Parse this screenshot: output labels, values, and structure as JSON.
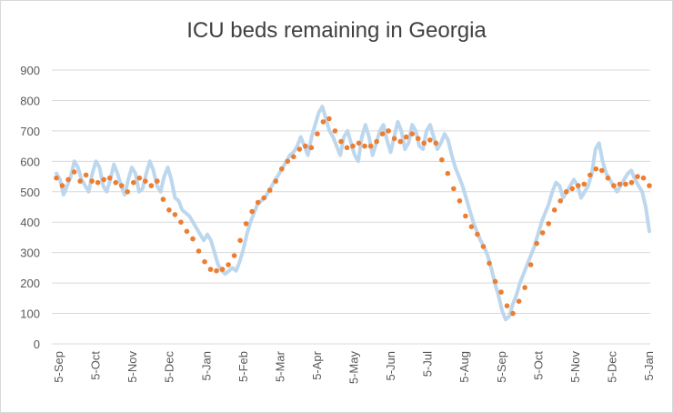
{
  "chart_data": {
    "type": "line",
    "title": "ICU beds remaining in Georgia",
    "xlabel": "",
    "ylabel": "",
    "ylim": [
      0,
      900
    ],
    "yticks": [
      0,
      100,
      200,
      300,
      400,
      500,
      600,
      700,
      800,
      900
    ],
    "x_tick_labels": [
      "5-Sep",
      "5-Oct",
      "5-Nov",
      "5-Dec",
      "5-Jan",
      "5-Feb",
      "5-Mar",
      "5-Apr",
      "5-May",
      "5-Jun",
      "5-Jul",
      "5-Aug",
      "5-Sep",
      "5-Oct",
      "5-Nov",
      "5-Dec",
      "5-Jan"
    ],
    "grid": true,
    "legend": "none",
    "colors": {
      "daily_line": "#bdd7ee",
      "weekly_markers": "#ed7d31",
      "gridline": "#d9d9d9",
      "title_text": "#404040",
      "tick_text": "#595959"
    },
    "series": [
      {
        "style": "line",
        "points": [
          [
            0,
            560
          ],
          [
            1,
            540
          ],
          [
            2,
            490
          ],
          [
            3,
            520
          ],
          [
            4,
            550
          ],
          [
            5,
            600
          ],
          [
            6,
            580
          ],
          [
            7,
            540
          ],
          [
            8,
            520
          ],
          [
            9,
            500
          ],
          [
            10,
            560
          ],
          [
            11,
            600
          ],
          [
            12,
            580
          ],
          [
            13,
            520
          ],
          [
            14,
            500
          ],
          [
            15,
            540
          ],
          [
            16,
            590
          ],
          [
            17,
            560
          ],
          [
            18,
            520
          ],
          [
            19,
            490
          ],
          [
            20,
            540
          ],
          [
            21,
            580
          ],
          [
            22,
            560
          ],
          [
            23,
            500
          ],
          [
            24,
            510
          ],
          [
            25,
            560
          ],
          [
            26,
            600
          ],
          [
            27,
            570
          ],
          [
            28,
            520
          ],
          [
            29,
            500
          ],
          [
            30,
            550
          ],
          [
            31,
            580
          ],
          [
            32,
            540
          ],
          [
            33,
            480
          ],
          [
            34,
            470
          ],
          [
            35,
            440
          ],
          [
            36,
            430
          ],
          [
            37,
            420
          ],
          [
            38,
            400
          ],
          [
            39,
            380
          ],
          [
            40,
            360
          ],
          [
            41,
            340
          ],
          [
            42,
            360
          ],
          [
            43,
            340
          ],
          [
            44,
            300
          ],
          [
            45,
            260
          ],
          [
            46,
            240
          ],
          [
            47,
            230
          ],
          [
            48,
            240
          ],
          [
            49,
            250
          ],
          [
            50,
            240
          ],
          [
            51,
            270
          ],
          [
            52,
            310
          ],
          [
            53,
            360
          ],
          [
            54,
            400
          ],
          [
            55,
            430
          ],
          [
            56,
            460
          ],
          [
            57,
            470
          ],
          [
            58,
            480
          ],
          [
            59,
            500
          ],
          [
            60,
            520
          ],
          [
            61,
            540
          ],
          [
            62,
            560
          ],
          [
            63,
            580
          ],
          [
            64,
            600
          ],
          [
            65,
            620
          ],
          [
            66,
            630
          ],
          [
            67,
            650
          ],
          [
            68,
            680
          ],
          [
            69,
            650
          ],
          [
            70,
            620
          ],
          [
            71,
            680
          ],
          [
            72,
            720
          ],
          [
            73,
            760
          ],
          [
            74,
            780
          ],
          [
            75,
            740
          ],
          [
            76,
            700
          ],
          [
            77,
            680
          ],
          [
            78,
            650
          ],
          [
            79,
            620
          ],
          [
            80,
            680
          ],
          [
            81,
            700
          ],
          [
            82,
            660
          ],
          [
            83,
            620
          ],
          [
            84,
            600
          ],
          [
            85,
            680
          ],
          [
            86,
            720
          ],
          [
            87,
            680
          ],
          [
            88,
            620
          ],
          [
            89,
            660
          ],
          [
            90,
            700
          ],
          [
            91,
            720
          ],
          [
            92,
            670
          ],
          [
            93,
            630
          ],
          [
            94,
            680
          ],
          [
            95,
            730
          ],
          [
            96,
            700
          ],
          [
            97,
            640
          ],
          [
            98,
            660
          ],
          [
            99,
            720
          ],
          [
            100,
            700
          ],
          [
            101,
            650
          ],
          [
            102,
            640
          ],
          [
            103,
            700
          ],
          [
            104,
            720
          ],
          [
            105,
            680
          ],
          [
            106,
            640
          ],
          [
            107,
            660
          ],
          [
            108,
            690
          ],
          [
            109,
            670
          ],
          [
            110,
            620
          ],
          [
            111,
            580
          ],
          [
            112,
            550
          ],
          [
            113,
            520
          ],
          [
            114,
            480
          ],
          [
            115,
            440
          ],
          [
            116,
            400
          ],
          [
            117,
            370
          ],
          [
            118,
            340
          ],
          [
            119,
            320
          ],
          [
            120,
            290
          ],
          [
            121,
            250
          ],
          [
            122,
            200
          ],
          [
            123,
            160
          ],
          [
            124,
            110
          ],
          [
            125,
            80
          ],
          [
            126,
            90
          ],
          [
            127,
            130
          ],
          [
            128,
            160
          ],
          [
            129,
            200
          ],
          [
            130,
            230
          ],
          [
            131,
            260
          ],
          [
            132,
            290
          ],
          [
            133,
            320
          ],
          [
            134,
            360
          ],
          [
            135,
            400
          ],
          [
            136,
            430
          ],
          [
            137,
            460
          ],
          [
            138,
            500
          ],
          [
            139,
            530
          ],
          [
            140,
            520
          ],
          [
            141,
            480
          ],
          [
            142,
            500
          ],
          [
            143,
            520
          ],
          [
            144,
            540
          ],
          [
            145,
            520
          ],
          [
            146,
            480
          ],
          [
            147,
            500
          ],
          [
            148,
            520
          ],
          [
            149,
            560
          ],
          [
            150,
            640
          ],
          [
            151,
            660
          ],
          [
            152,
            600
          ],
          [
            153,
            560
          ],
          [
            154,
            540
          ],
          [
            155,
            520
          ],
          [
            156,
            500
          ],
          [
            157,
            520
          ],
          [
            158,
            540
          ],
          [
            159,
            560
          ],
          [
            160,
            570
          ],
          [
            161,
            540
          ],
          [
            162,
            520
          ],
          [
            163,
            500
          ],
          [
            164,
            450
          ],
          [
            165,
            370
          ]
        ]
      },
      {
        "style": "markers",
        "points": [
          [
            0,
            545
          ],
          [
            2,
            520
          ],
          [
            4,
            540
          ],
          [
            6,
            565
          ],
          [
            8,
            535
          ],
          [
            10,
            555
          ],
          [
            12,
            535
          ],
          [
            14,
            530
          ],
          [
            16,
            540
          ],
          [
            18,
            545
          ],
          [
            20,
            530
          ],
          [
            22,
            520
          ],
          [
            24,
            500
          ],
          [
            26,
            530
          ],
          [
            28,
            545
          ],
          [
            30,
            535
          ],
          [
            32,
            520
          ],
          [
            34,
            535
          ],
          [
            36,
            475
          ],
          [
            38,
            440
          ],
          [
            40,
            425
          ],
          [
            42,
            400
          ],
          [
            44,
            370
          ],
          [
            46,
            345
          ],
          [
            48,
            305
          ],
          [
            50,
            270
          ],
          [
            52,
            245
          ],
          [
            54,
            240
          ],
          [
            56,
            245
          ],
          [
            58,
            260
          ],
          [
            60,
            290
          ],
          [
            62,
            340
          ],
          [
            64,
            395
          ],
          [
            66,
            435
          ],
          [
            68,
            465
          ],
          [
            70,
            480
          ],
          [
            72,
            505
          ],
          [
            74,
            535
          ],
          [
            76,
            575
          ],
          [
            78,
            600
          ],
          [
            80,
            615
          ],
          [
            82,
            640
          ],
          [
            84,
            650
          ],
          [
            86,
            645
          ],
          [
            88,
            690
          ],
          [
            90,
            730
          ],
          [
            92,
            740
          ],
          [
            94,
            700
          ],
          [
            96,
            665
          ],
          [
            98,
            645
          ],
          [
            100,
            650
          ],
          [
            102,
            660
          ],
          [
            104,
            650
          ],
          [
            106,
            650
          ],
          [
            108,
            665
          ],
          [
            110,
            690
          ],
          [
            112,
            700
          ],
          [
            114,
            675
          ],
          [
            116,
            665
          ],
          [
            118,
            680
          ],
          [
            120,
            690
          ],
          [
            122,
            675
          ],
          [
            124,
            660
          ],
          [
            126,
            670
          ],
          [
            128,
            660
          ],
          [
            130,
            605
          ],
          [
            132,
            560
          ],
          [
            134,
            510
          ],
          [
            136,
            470
          ],
          [
            138,
            420
          ],
          [
            140,
            385
          ],
          [
            142,
            360
          ],
          [
            144,
            320
          ],
          [
            146,
            265
          ],
          [
            148,
            205
          ],
          [
            150,
            170
          ],
          [
            152,
            125
          ],
          [
            154,
            100
          ],
          [
            156,
            140
          ],
          [
            158,
            185
          ],
          [
            160,
            260
          ],
          [
            162,
            330
          ],
          [
            164,
            365
          ],
          [
            166,
            395
          ],
          [
            168,
            440
          ],
          [
            170,
            470
          ],
          [
            172,
            500
          ],
          [
            174,
            510
          ],
          [
            176,
            520
          ],
          [
            178,
            525
          ],
          [
            180,
            555
          ],
          [
            182,
            575
          ],
          [
            184,
            570
          ],
          [
            186,
            545
          ],
          [
            188,
            520
          ],
          [
            190,
            525
          ],
          [
            192,
            525
          ],
          [
            194,
            530
          ],
          [
            196,
            550
          ],
          [
            198,
            545
          ],
          [
            200,
            520
          ]
        ]
      }
    ]
  }
}
